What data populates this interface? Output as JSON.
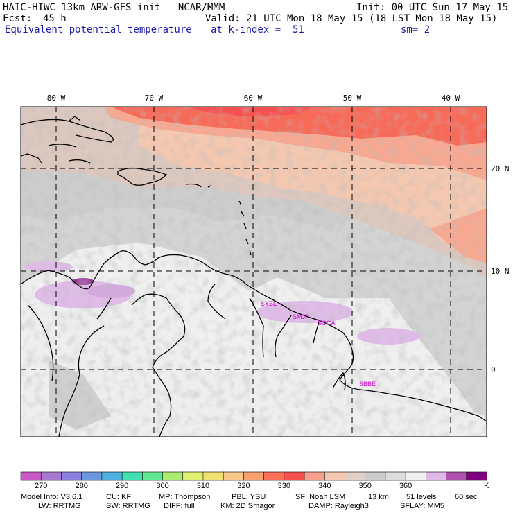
{
  "header": {
    "title": "HAIC-HIWC 13km ARW-GFS init   NCAR/MMM",
    "init": "Init: 00 UTC Sun 17 May 15",
    "fcst_label": "Fcst:",
    "fcst_value": "45 h",
    "valid": "Valid: 21 UTC Mon 18 May 15 (18 LST Mon 18 May 15)",
    "field": "Equivalent potential temperature",
    "level": "at k-index =  51",
    "smoothing": "sm= 2"
  },
  "map": {
    "lon_labels": [
      "80 W",
      "70 W",
      "60 W",
      "50 W",
      "40 W"
    ],
    "lat_labels": [
      "20 N",
      "10 N",
      "0"
    ],
    "stations": [
      "SYBL",
      "SMJP",
      "SOCA",
      "SBBE"
    ]
  },
  "colorbar": {
    "colors": [
      "#c858c8",
      "#a878d0",
      "#8c80e0",
      "#6c98e0",
      "#50b0e0",
      "#40e0b0",
      "#60e890",
      "#a8ec70",
      "#e0f070",
      "#f0e070",
      "#f8c888",
      "#f8a070",
      "#f87058",
      "#f85050",
      "#f8a090",
      "#f4c8b0",
      "#e0d0c8",
      "#cccccc",
      "#dcdcdc",
      "#f0f0f0",
      "#e0b8e8",
      "#b050b0",
      "#800080"
    ],
    "tick_labels": [
      "270",
      "280",
      "290",
      "300",
      "310",
      "320",
      "330",
      "340",
      "350",
      "360"
    ],
    "unit": "K"
  },
  "footer": {
    "line1": [
      "Model Info: V3.6.1",
      "CU: KF",
      "MP: Thompson",
      "PBL: YSU",
      "SF: Noah LSM",
      "13 km",
      "51 levels",
      "60 sec"
    ],
    "line2": [
      "LW: RRTMG",
      "SW: RRTMG",
      "DIFF: full",
      "KM: 2D Smagor",
      "DAMP: Rayleigh3",
      "SFLAY: MM5"
    ]
  }
}
